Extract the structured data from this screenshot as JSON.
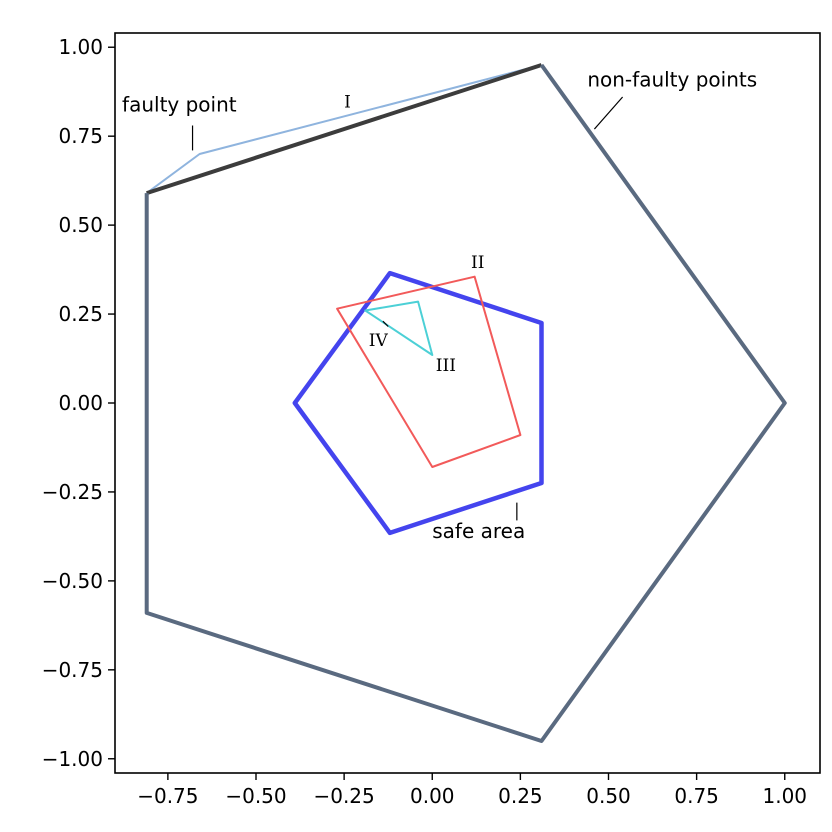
{
  "chart_data": {
    "type": "line",
    "title": "",
    "xlabel": "",
    "ylabel": "",
    "xlim": [
      -0.9,
      1.1
    ],
    "ylim": [
      -1.04,
      1.04
    ],
    "grid": false,
    "x_ticks": [
      -0.75,
      -0.5,
      -0.25,
      0.0,
      0.25,
      0.5,
      0.75,
      1.0
    ],
    "x_tick_labels": [
      "−0.75",
      "−0.50",
      "−0.25",
      "0.00",
      "0.25",
      "0.50",
      "0.75",
      "1.00"
    ],
    "y_ticks": [
      1.0,
      0.75,
      0.5,
      0.25,
      0.0,
      -0.25,
      -0.5,
      -0.75,
      -1.0
    ],
    "y_tick_labels": [
      "1.00",
      "0.75",
      "0.50",
      "0.25",
      "0.00",
      "−0.25",
      "−0.50",
      "−0.75",
      "−1.00"
    ],
    "series": [
      {
        "color": "#8fb4de",
        "closed": false,
        "points": [
          [
            -0.81,
            0.59
          ],
          [
            -0.66,
            0.7
          ],
          [
            0.31,
            0.95
          ]
        ]
      },
      {
        "color": "#3c3c3c",
        "closed": false,
        "points": [
          [
            -0.81,
            0.59
          ],
          [
            0.31,
            0.95
          ]
        ]
      },
      {
        "color": "#5a6a80",
        "closed": false,
        "points": [
          [
            0.31,
            0.95
          ],
          [
            1.0,
            0.0
          ],
          [
            0.31,
            -0.95
          ],
          [
            -0.81,
            -0.59
          ],
          [
            -0.81,
            0.59
          ]
        ]
      },
      {
        "color": "#4444ee",
        "closed": true,
        "points": [
          [
            -0.12,
            0.365
          ],
          [
            0.31,
            0.225
          ],
          [
            0.31,
            -0.225
          ],
          [
            -0.12,
            -0.365
          ],
          [
            -0.39,
            0.0
          ]
        ]
      },
      {
        "color": "#f25a5a",
        "closed": true,
        "points": [
          [
            -0.27,
            0.265
          ],
          [
            0.12,
            0.355
          ],
          [
            0.25,
            -0.09
          ],
          [
            0.0,
            -0.18
          ]
        ]
      },
      {
        "color": "#4cd0d6",
        "closed": true,
        "points": [
          [
            -0.19,
            0.26
          ],
          [
            -0.04,
            0.285
          ],
          [
            0.0,
            0.135
          ]
        ]
      }
    ],
    "annotations": [
      {
        "text": "faulty point",
        "style": "annot",
        "x": -0.88,
        "y": 0.82
      },
      {
        "text": "non-faulty points",
        "style": "annot",
        "x": 0.44,
        "y": 0.89
      },
      {
        "text": "safe area",
        "style": "annot",
        "x": 0.0,
        "y": -0.38
      },
      {
        "text": "I",
        "style": "roman",
        "x": -0.25,
        "y": 0.83
      },
      {
        "text": "II",
        "style": "roman",
        "x": 0.11,
        "y": 0.38
      },
      {
        "text": "III",
        "style": "roman",
        "x": 0.01,
        "y": 0.09
      },
      {
        "text": "IV",
        "style": "roman",
        "x": -0.18,
        "y": 0.16
      }
    ],
    "pointer_lines": [
      [
        [
          -0.68,
          0.78
        ],
        [
          -0.68,
          0.71
        ]
      ],
      [
        [
          0.54,
          0.86
        ],
        [
          0.46,
          0.77
        ]
      ],
      [
        [
          0.24,
          -0.33
        ],
        [
          0.24,
          -0.28
        ]
      ],
      [
        [
          -0.14,
          0.23
        ],
        [
          -0.125,
          0.215
        ]
      ]
    ]
  }
}
